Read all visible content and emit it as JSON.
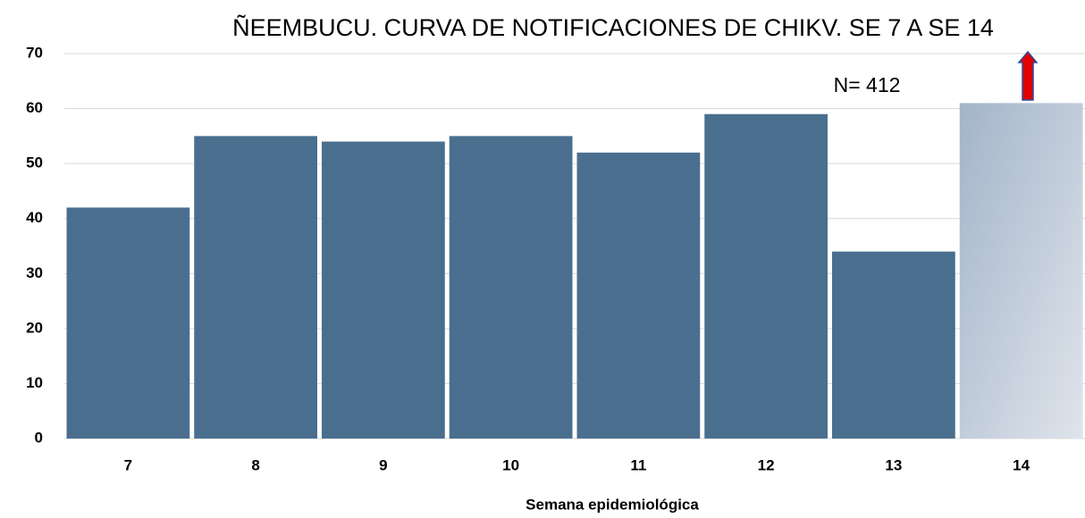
{
  "chart_data": {
    "type": "bar",
    "title": "ÑEEMBUCU. CURVA DE NOTIFICACIONES DE CHIKV. SE 7 A SE 14",
    "annotation": "N= 412",
    "x_label": "Semana epidemiológica",
    "categories": [
      "7",
      "8",
      "9",
      "10",
      "11",
      "12",
      "13",
      "14"
    ],
    "values": [
      42,
      55,
      54,
      55,
      52,
      59,
      34,
      61
    ],
    "colors": [
      "#4a6e8e",
      "#4a6e8e",
      "#4a6e8e",
      "#4a6e8e",
      "#4a6e8e",
      "#4a6e8e",
      "#4a6e8e",
      "#b6c3d3"
    ],
    "ylim": [
      0,
      70
    ],
    "yticks": [
      0,
      10,
      20,
      30,
      40,
      50,
      60,
      70
    ],
    "grid": true
  }
}
